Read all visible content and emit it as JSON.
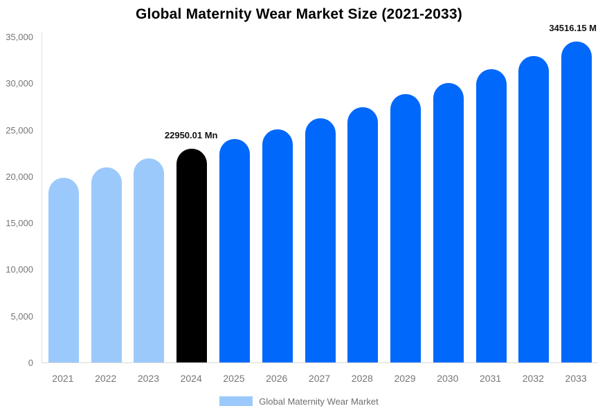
{
  "title": "Global Maternity Wear Market Size (2021-2033)",
  "chart_data": {
    "type": "bar",
    "title": "Global Maternity Wear Market Size (2021-2033)",
    "categories": [
      "2021",
      "2022",
      "2023",
      "2024",
      "2025",
      "2026",
      "2027",
      "2028",
      "2029",
      "2030",
      "2031",
      "2032",
      "2033"
    ],
    "series": [
      {
        "name": "Global Maternity Wear Market",
        "values": [
          19830,
          20950,
          21900,
          22950.01,
          23990,
          25080,
          26200,
          27400,
          28810,
          30020,
          31490,
          32920,
          34516.15
        ]
      }
    ],
    "point_colors": [
      "#9cc9fb",
      "#9cc9fb",
      "#9cc9fb",
      "#000000",
      "#0068fa",
      "#0068fa",
      "#0068fa",
      "#0068fa",
      "#0068fa",
      "#0068fa",
      "#0068fa",
      "#0068fa",
      "#0068fa"
    ],
    "y_axis": {
      "min": 0,
      "max": 35000,
      "tick_step": 5000,
      "tick_labels": [
        "0",
        "5,000",
        "10,000",
        "15,000",
        "20,000",
        "25,000",
        "30,000",
        "35,000"
      ]
    },
    "x_axis": {
      "label": ""
    },
    "grid": false,
    "legend": {
      "position": "bottom",
      "label": "Global Maternity Wear Market",
      "swatch_color": "#9cc9fb"
    },
    "annotations": [
      {
        "category": "2024",
        "text": "22950.01 Mn",
        "value": 22950.01,
        "align": "center"
      },
      {
        "category": "2033",
        "text": "34516.15 M",
        "value": 34516.15,
        "align": "right"
      }
    ],
    "colors": {
      "historical_bar": "#9cc9fb",
      "base_year_bar": "#000000",
      "forecast_bar": "#0068fa",
      "axis_line": "#d9d9d9",
      "tick_label": "#757575"
    }
  }
}
